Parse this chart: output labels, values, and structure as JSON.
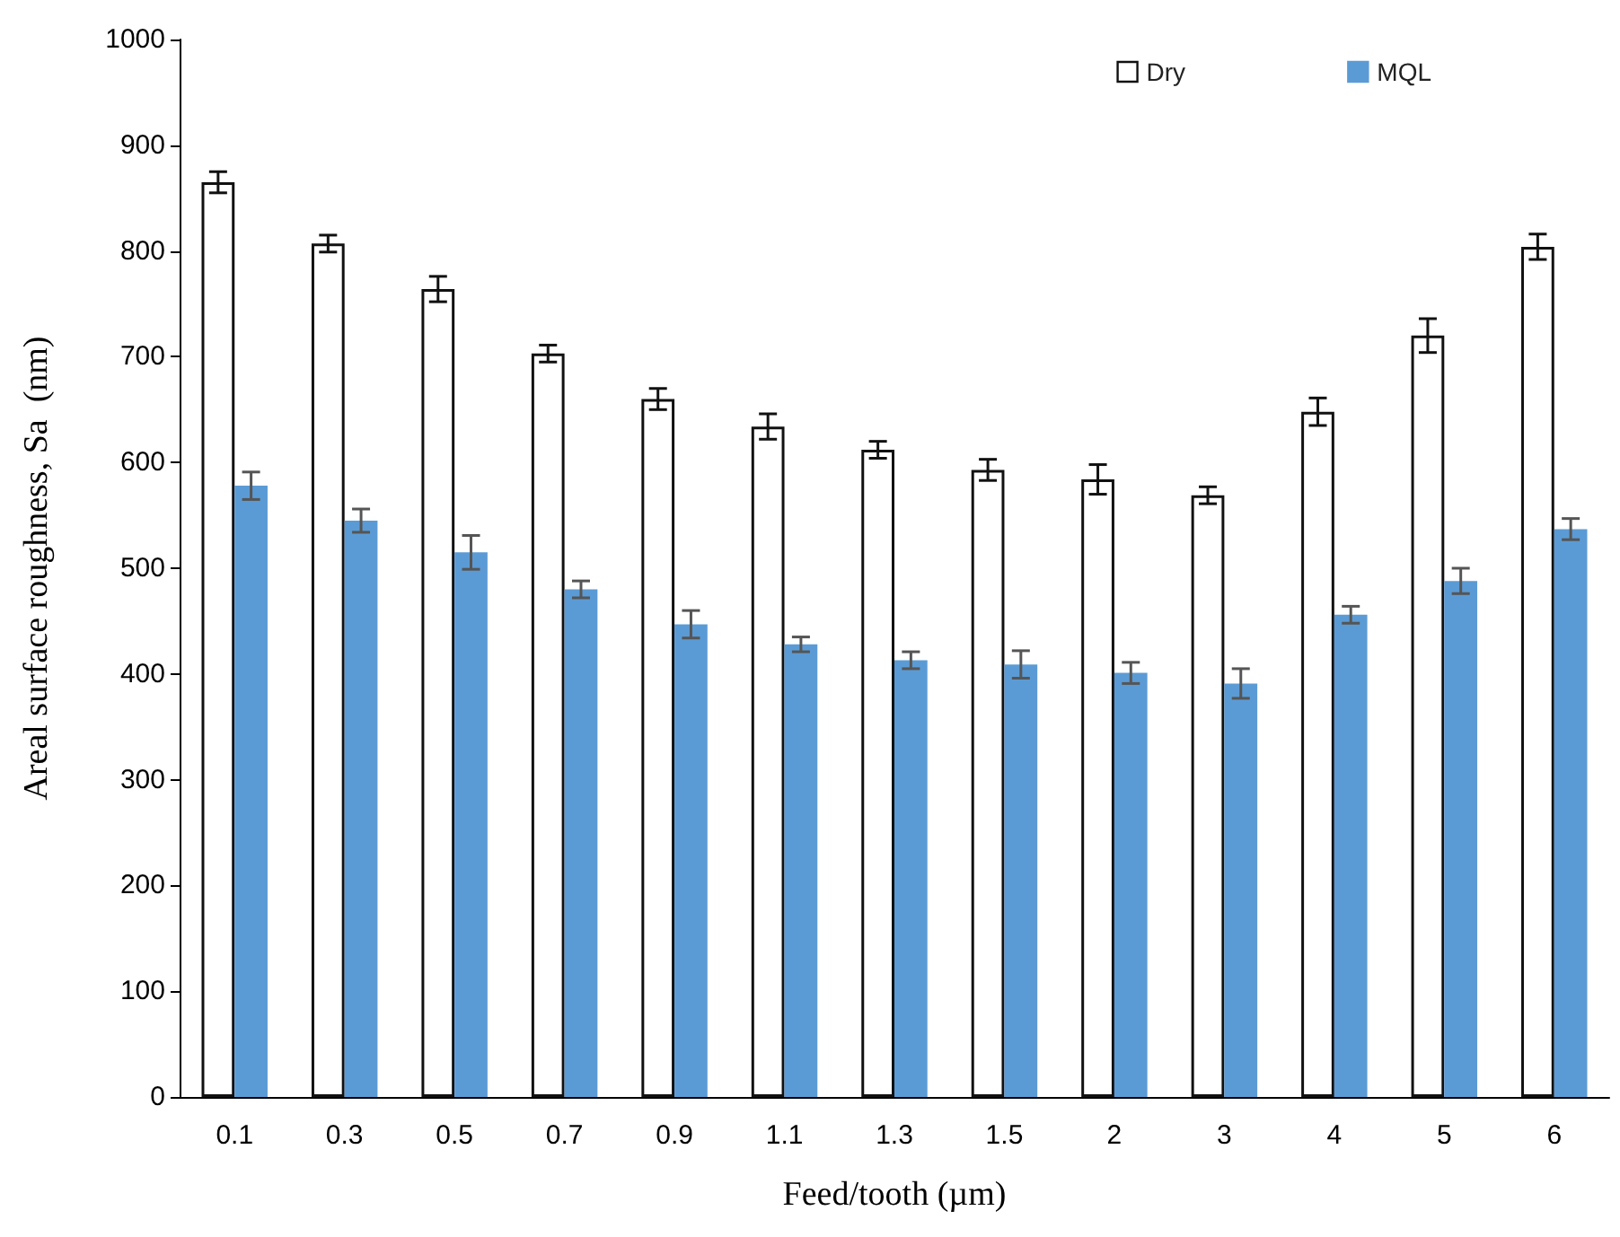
{
  "chart_data": {
    "type": "bar",
    "xlabel": "Feed/tooth (µm)",
    "ylabel": "Areal surface roughness, Sa  (nm)",
    "categories": [
      "0.1",
      "0.3",
      "0.5",
      "0.7",
      "0.9",
      "1.1",
      "1.3",
      "1.5",
      "2",
      "3",
      "4",
      "5",
      "6"
    ],
    "series": [
      {
        "name": "Dry",
        "color": "#ffffff",
        "values": [
          865,
          807,
          764,
          703,
          660,
          634,
          612,
          593,
          584,
          569,
          648,
          720,
          804
        ],
        "errors": [
          10,
          8,
          12,
          8,
          10,
          12,
          8,
          10,
          14,
          8,
          13,
          16,
          12
        ]
      },
      {
        "name": "MQL",
        "color": "#5b9bd5",
        "values": [
          578,
          545,
          515,
          480,
          447,
          428,
          413,
          409,
          401,
          391,
          456,
          488,
          537
        ],
        "errors": [
          13,
          11,
          16,
          8,
          13,
          7,
          8,
          13,
          10,
          14,
          8,
          12,
          10
        ]
      }
    ],
    "ylim": [
      0,
      1000
    ],
    "yticks": [
      0,
      100,
      200,
      300,
      400,
      500,
      600,
      700,
      800,
      900,
      1000
    ],
    "grid": false,
    "legend": "top right"
  }
}
